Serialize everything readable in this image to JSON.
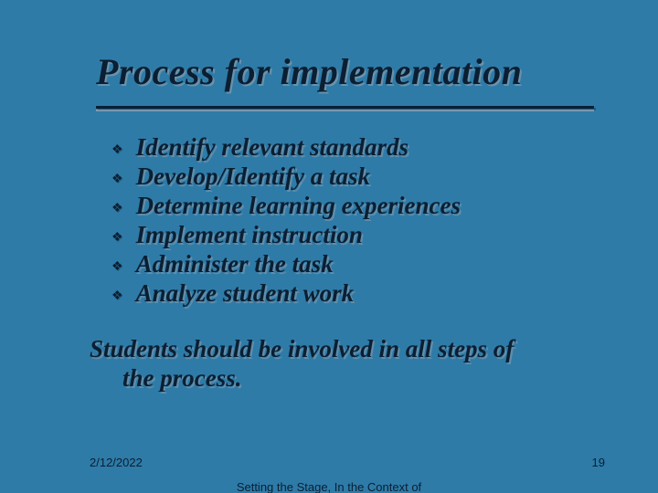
{
  "slide": {
    "title": "Process for implementation",
    "bullets": [
      "Identify relevant standards",
      "Develop/Identify a task",
      "Determine learning experiences",
      "Implement instruction",
      "Administer the task",
      "Analyze student work"
    ],
    "conclusion_line1": "Students should be involved in all steps of",
    "conclusion_line2": "the process.",
    "footer": {
      "date": "2/12/2022",
      "caption": "Setting the Stage, In the Context of Mathematics",
      "page": "19"
    }
  },
  "style": {
    "background_color": "#2e7ba8",
    "title_color": "#0a1f33",
    "title_fontsize_pt": 30,
    "bullet_fontsize_pt": 20,
    "bullet_icon": "❖",
    "rule_color": "#0a1f33",
    "shadow_color": "rgba(150,160,170,0.55)",
    "footer_fontsize_pt": 10,
    "font_family_title": "Georgia serif italic bold",
    "font_family_footer": "Arial sans-serif"
  }
}
